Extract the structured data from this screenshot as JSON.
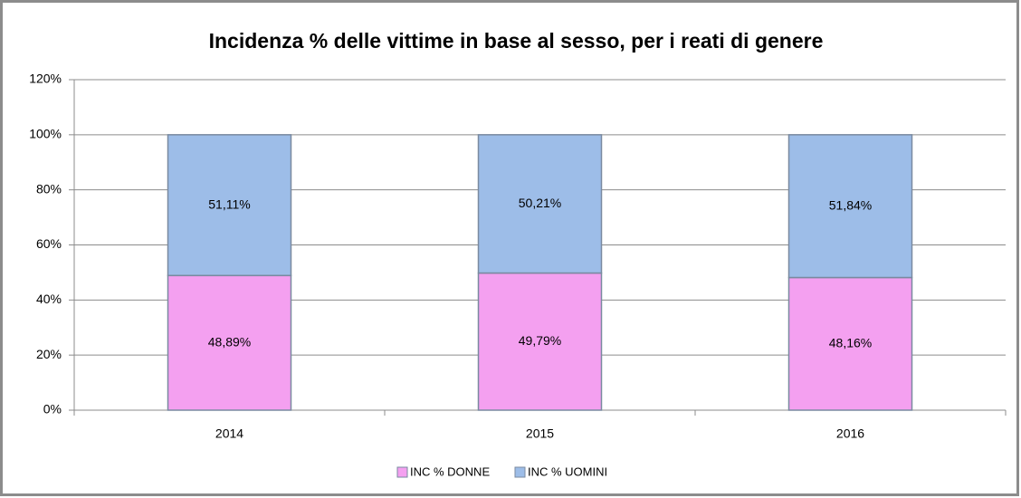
{
  "chart_data": {
    "type": "bar",
    "stacked": true,
    "title": "Incidenza % delle vittime in base al sesso, per i reati di genere",
    "categories": [
      "2014",
      "2015",
      "2016"
    ],
    "series": [
      {
        "name": "INC % DONNE",
        "color": "#f4a0f0",
        "values": [
          48.89,
          49.79,
          48.16
        ],
        "value_labels": [
          "48,89%",
          "49,79%",
          "48,16%"
        ]
      },
      {
        "name": "INC % UOMINI",
        "color": "#9dbde8",
        "values": [
          51.11,
          50.21,
          51.84
        ],
        "value_labels": [
          "51,11%",
          "50,21%",
          "51,84%"
        ]
      }
    ],
    "ylim": [
      0,
      120
    ],
    "yticks": [
      {
        "value": 0,
        "label": "0%"
      },
      {
        "value": 20,
        "label": "20%"
      },
      {
        "value": 40,
        "label": "40%"
      },
      {
        "value": 60,
        "label": "60%"
      },
      {
        "value": 80,
        "label": "80%"
      },
      {
        "value": 100,
        "label": "100%"
      },
      {
        "value": 120,
        "label": "120%"
      }
    ],
    "grid": true,
    "legend": "bottom"
  }
}
